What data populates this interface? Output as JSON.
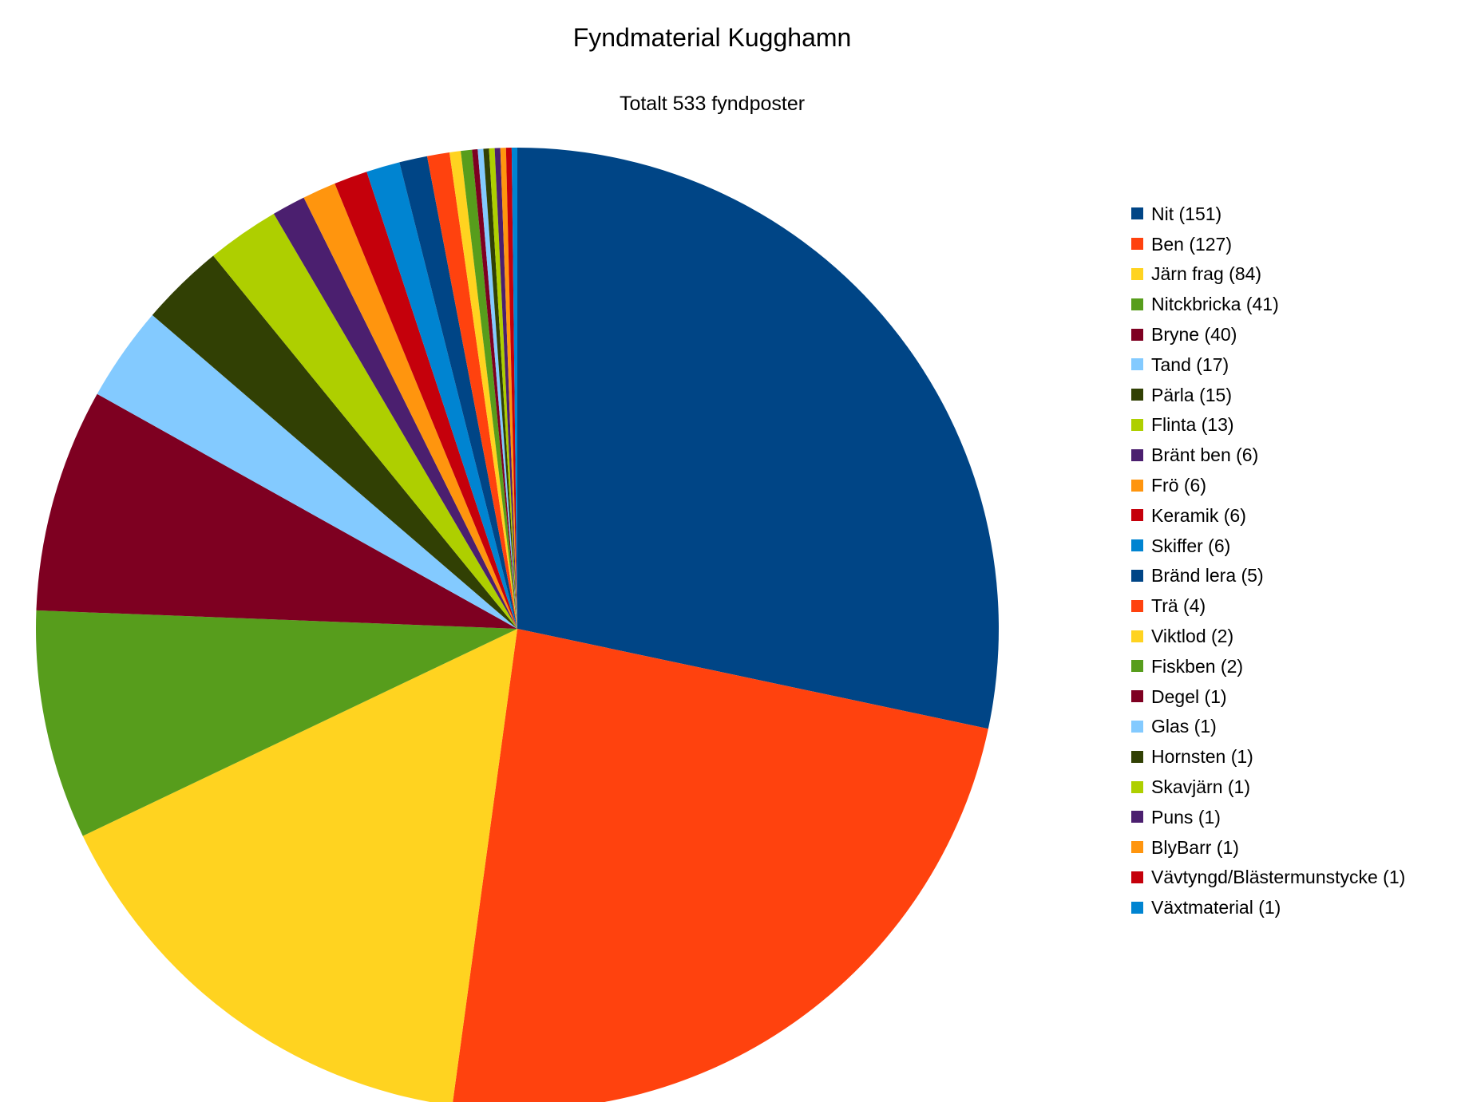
{
  "chart_data": {
    "type": "pie",
    "title": "Fyndmaterial Kugghamn",
    "subtitle": "Totalt 533 fyndposter",
    "legend_position": "right",
    "start_angle_deg": 0,
    "direction": "clockwise",
    "slices": [
      {
        "label": "Nit (151)",
        "value": 151,
        "color": "#004586"
      },
      {
        "label": "Ben (127)",
        "value": 127,
        "color": "#ff420e"
      },
      {
        "label": "Järn frag (84)",
        "value": 84,
        "color": "#ffd320"
      },
      {
        "label": "Nitckbricka (41)",
        "value": 41,
        "color": "#579d1c"
      },
      {
        "label": "Bryne (40)",
        "value": 40,
        "color": "#7e0021"
      },
      {
        "label": "Tand (17)",
        "value": 17,
        "color": "#83caff"
      },
      {
        "label": "Pärla (15)",
        "value": 15,
        "color": "#314004"
      },
      {
        "label": "Flinta (13)",
        "value": 13,
        "color": "#aecf00"
      },
      {
        "label": "Bränt ben (6)",
        "value": 6,
        "color": "#4b1f6f"
      },
      {
        "label": "Frö (6)",
        "value": 6,
        "color": "#ff950e"
      },
      {
        "label": "Keramik (6)",
        "value": 6,
        "color": "#c5000b"
      },
      {
        "label": "Skiffer (6)",
        "value": 6,
        "color": "#0084d1"
      },
      {
        "label": "Bränd lera (5)",
        "value": 5,
        "color": "#004586"
      },
      {
        "label": "Trä (4)",
        "value": 4,
        "color": "#ff420e"
      },
      {
        "label": "Viktlod (2)",
        "value": 2,
        "color": "#ffd320"
      },
      {
        "label": "Fiskben (2)",
        "value": 2,
        "color": "#579d1c"
      },
      {
        "label": "Degel (1)",
        "value": 1,
        "color": "#7e0021"
      },
      {
        "label": "Glas (1)",
        "value": 1,
        "color": "#83caff"
      },
      {
        "label": "Hornsten (1)",
        "value": 1,
        "color": "#314004"
      },
      {
        "label": "Skavjärn (1)",
        "value": 1,
        "color": "#aecf00"
      },
      {
        "label": "Puns (1)",
        "value": 1,
        "color": "#4b1f6f"
      },
      {
        "label": "BlyBarr (1)",
        "value": 1,
        "color": "#ff950e"
      },
      {
        "label": "Vävtyngd/Blästermunstycke (1)",
        "value": 1,
        "color": "#c5000b"
      },
      {
        "label": "Växtmaterial (1)",
        "value": 1,
        "color": "#0084d1"
      }
    ]
  }
}
